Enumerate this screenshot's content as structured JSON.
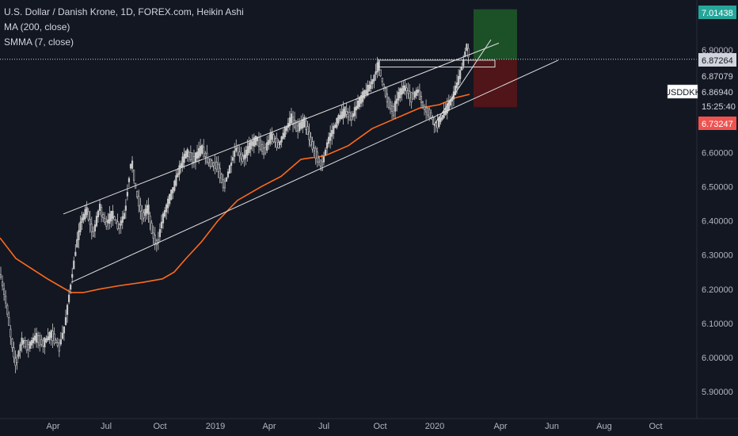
{
  "legend": {
    "title": "U.S. Dollar / Danish Krone, 1D, FOREX.com, Heikin Ashi",
    "ma": "MA (200, close)",
    "smma": "SMMA (7, close)"
  },
  "colors": {
    "background": "#131722",
    "candle": "#c8c8c8",
    "ma": "#ff6a1a",
    "trendline": "#e0e0e0",
    "target_zone": "#1e5a28",
    "stop_zone": "#5a1518",
    "badge_green": "#26a69a",
    "badge_red": "#ef5350"
  },
  "chart_data": {
    "type": "candlestick",
    "symbol": "USDDKK",
    "ylim": [
      5.84,
      7.09
    ],
    "y_ticks": [
      "5.90000",
      "6.00000",
      "6.10000",
      "6.20000",
      "6.30000",
      "6.40000",
      "6.50000",
      "6.60000",
      "6.90000"
    ],
    "x_ticks": [
      "Apr",
      "Jul",
      "Oct",
      "2019",
      "Apr",
      "Jul",
      "Oct",
      "2020",
      "Apr",
      "Jun",
      "Aug",
      "Oct"
    ],
    "price_labels": [
      {
        "text": "7.01438",
        "value": 7.01438,
        "style": "green"
      },
      {
        "text": "6.87264",
        "value": 6.87264,
        "style": "white"
      },
      {
        "text": "6.87079",
        "value": 6.87079,
        "style": "plain"
      },
      {
        "text": "USDDKK",
        "value": 6.8694,
        "style": "symbol"
      },
      {
        "text": "6.86940",
        "value": 6.8694,
        "style": "plain"
      },
      {
        "text": "15:25:40",
        "value": 6.775,
        "style": "plain"
      },
      {
        "text": "6.73247",
        "value": 6.73247,
        "style": "red"
      }
    ],
    "last_price": 6.87264,
    "target": 7.01438,
    "stop": 6.73247,
    "candle_path": [
      [
        0,
        6.25
      ],
      [
        8,
        6.16
      ],
      [
        14,
        6.06
      ],
      [
        20,
        5.98
      ],
      [
        28,
        6.05
      ],
      [
        36,
        6.03
      ],
      [
        45,
        6.06
      ],
      [
        55,
        6.04
      ],
      [
        65,
        6.07
      ],
      [
        75,
        6.03
      ],
      [
        82,
        6.09
      ],
      [
        90,
        6.22
      ],
      [
        97,
        6.33
      ],
      [
        103,
        6.4
      ],
      [
        110,
        6.43
      ],
      [
        118,
        6.36
      ],
      [
        126,
        6.44
      ],
      [
        134,
        6.39
      ],
      [
        142,
        6.42
      ],
      [
        150,
        6.38
      ],
      [
        158,
        6.42
      ],
      [
        166,
        6.58
      ],
      [
        172,
        6.49
      ],
      [
        180,
        6.41
      ],
      [
        187,
        6.44
      ],
      [
        193,
        6.36
      ],
      [
        199,
        6.33
      ],
      [
        205,
        6.4
      ],
      [
        212,
        6.45
      ],
      [
        220,
        6.5
      ],
      [
        228,
        6.56
      ],
      [
        236,
        6.6
      ],
      [
        245,
        6.58
      ],
      [
        255,
        6.61
      ],
      [
        265,
        6.57
      ],
      [
        275,
        6.56
      ],
      [
        283,
        6.5
      ],
      [
        290,
        6.55
      ],
      [
        298,
        6.61
      ],
      [
        307,
        6.58
      ],
      [
        316,
        6.62
      ],
      [
        325,
        6.64
      ],
      [
        334,
        6.6
      ],
      [
        343,
        6.65
      ],
      [
        352,
        6.62
      ],
      [
        360,
        6.66
      ],
      [
        368,
        6.7
      ],
      [
        376,
        6.67
      ],
      [
        385,
        6.69
      ],
      [
        393,
        6.63
      ],
      [
        400,
        6.59
      ],
      [
        407,
        6.56
      ],
      [
        414,
        6.63
      ],
      [
        420,
        6.66
      ],
      [
        428,
        6.7
      ],
      [
        436,
        6.72
      ],
      [
        444,
        6.7
      ],
      [
        452,
        6.74
      ],
      [
        460,
        6.77
      ],
      [
        467,
        6.79
      ],
      [
        473,
        6.82
      ],
      [
        478,
        6.86
      ],
      [
        484,
        6.8
      ],
      [
        490,
        6.75
      ],
      [
        497,
        6.72
      ],
      [
        504,
        6.77
      ],
      [
        512,
        6.79
      ],
      [
        520,
        6.76
      ],
      [
        528,
        6.78
      ],
      [
        536,
        6.73
      ],
      [
        544,
        6.71
      ],
      [
        551,
        6.68
      ],
      [
        558,
        6.7
      ],
      [
        565,
        6.73
      ],
      [
        572,
        6.76
      ],
      [
        579,
        6.81
      ],
      [
        585,
        6.86
      ],
      [
        589,
        6.91
      ],
      [
        593,
        6.88
      ]
    ],
    "ma_path": [
      [
        0,
        6.35
      ],
      [
        20,
        6.29
      ],
      [
        40,
        6.26
      ],
      [
        60,
        6.23
      ],
      [
        75,
        6.21
      ],
      [
        90,
        6.19
      ],
      [
        105,
        6.19
      ],
      [
        125,
        6.2
      ],
      [
        150,
        6.21
      ],
      [
        180,
        6.22
      ],
      [
        205,
        6.23
      ],
      [
        220,
        6.25
      ],
      [
        235,
        6.29
      ],
      [
        255,
        6.34
      ],
      [
        275,
        6.4
      ],
      [
        300,
        6.46
      ],
      [
        330,
        6.5
      ],
      [
        355,
        6.53
      ],
      [
        380,
        6.58
      ],
      [
        410,
        6.59
      ],
      [
        440,
        6.62
      ],
      [
        470,
        6.67
      ],
      [
        500,
        6.7
      ],
      [
        530,
        6.73
      ],
      [
        555,
        6.74
      ],
      [
        575,
        6.76
      ],
      [
        593,
        6.77
      ]
    ],
    "trendlines": [
      {
        "x1": 80,
        "y1": 6.42,
        "x2": 630,
        "y2": 6.92
      },
      {
        "x1": 90,
        "y1": 6.22,
        "x2": 705,
        "y2": 6.87
      },
      {
        "x1": 548,
        "y1": 6.68,
        "x2": 620,
        "y2": 6.93
      }
    ],
    "box": {
      "x1": 478,
      "x2": 625,
      "y_top": 6.87,
      "y_bottom": 6.85
    },
    "zone_x": [
      598,
      653
    ]
  }
}
